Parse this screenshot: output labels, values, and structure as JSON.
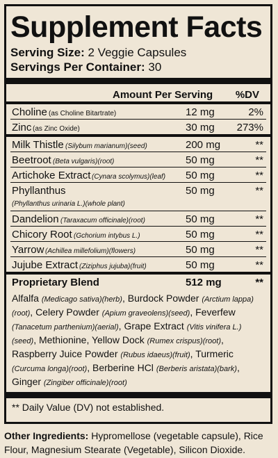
{
  "title": "Supplement Facts",
  "serving_size": {
    "label": "Serving Size:",
    "value": "2 Veggie Capsules"
  },
  "servings_per_container": {
    "label": "Servings Per Container:",
    "value": "30"
  },
  "header": {
    "amount": "Amount Per Serving",
    "dv": "%DV"
  },
  "rows": [
    {
      "name": "Choline",
      "detail": "(as Choline Bitartrate)",
      "amount": "12 mg",
      "dv": "2%"
    },
    {
      "name": "Zinc",
      "detail": "(as Zinc Oxide)",
      "amount": "30 mg",
      "dv": "273%"
    },
    {
      "name": "Milk Thistle",
      "detail": "(Silybum marianum)(seed)",
      "amount": "200 mg",
      "dv": "**"
    },
    {
      "name": "Beetroot",
      "detail": "(Beta vulgaris)(root)",
      "amount": "50 mg",
      "dv": "**"
    },
    {
      "name": "Artichoke Extract",
      "detail": "(Cynara scolymus)(leaf)",
      "amount": "50 mg",
      "dv": "**"
    },
    {
      "name": "Phyllanthus",
      "detail": "(Phyllanthus urinaria L.)(whole plant)",
      "amount": "50 mg",
      "dv": "**"
    },
    {
      "name": "Dandelion",
      "detail": "(Taraxacum officinale)(root)",
      "amount": "50 mg",
      "dv": "**"
    },
    {
      "name": "Chicory Root",
      "detail": "(Gchorium intybus L.)",
      "amount": "50 mg",
      "dv": "**"
    },
    {
      "name": "Yarrow",
      "detail": "(Achillea millefolium)(flowers)",
      "amount": "50 mg",
      "dv": "**"
    },
    {
      "name": "Jujube Extract",
      "detail": "(Ziziphus jujuba)(fruit)",
      "amount": "50 mg",
      "dv": "**"
    }
  ],
  "blend": {
    "name": "Proprietary Blend",
    "amount": "512 mg",
    "dv": "**"
  },
  "blend_items": [
    {
      "name": "Alfalfa",
      "detail": "(Medicago sativa)(herb)"
    },
    {
      "name": "Burdock Powder",
      "detail": "(Arctium lappa)(root)"
    },
    {
      "name": "Celery Powder",
      "detail": "(Apium graveolens)(seed)"
    },
    {
      "name": "Feverfew",
      "detail": "(Tanacetum parthenium)(aerial)"
    },
    {
      "name": "Grape Extract",
      "detail": "(Vitis vinifera L.)(seed)"
    },
    {
      "name": "Methionine",
      "detail": ""
    },
    {
      "name": "Yellow Dock",
      "detail": "(Rumex crispus)(root)"
    },
    {
      "name": "Raspberry Juice Powder",
      "detail": "(Rubus idaeus)(fruit)"
    },
    {
      "name": "Turmeric",
      "detail": "(Curcuma longa)(root)"
    },
    {
      "name": "Berberine HCl",
      "detail": "(Berberis aristata)(bark)"
    },
    {
      "name": "Ginger",
      "detail": "(Zingiber officinale)(root)"
    }
  ],
  "footnote": "** Daily Value (DV) not established.",
  "other_ingredients": {
    "label": "Other Ingredients:",
    "text": "Hypromellose (vegetable capsule), Rice Flour, Magnesium Stearate (Vegetable), Silicon Dioxide."
  }
}
